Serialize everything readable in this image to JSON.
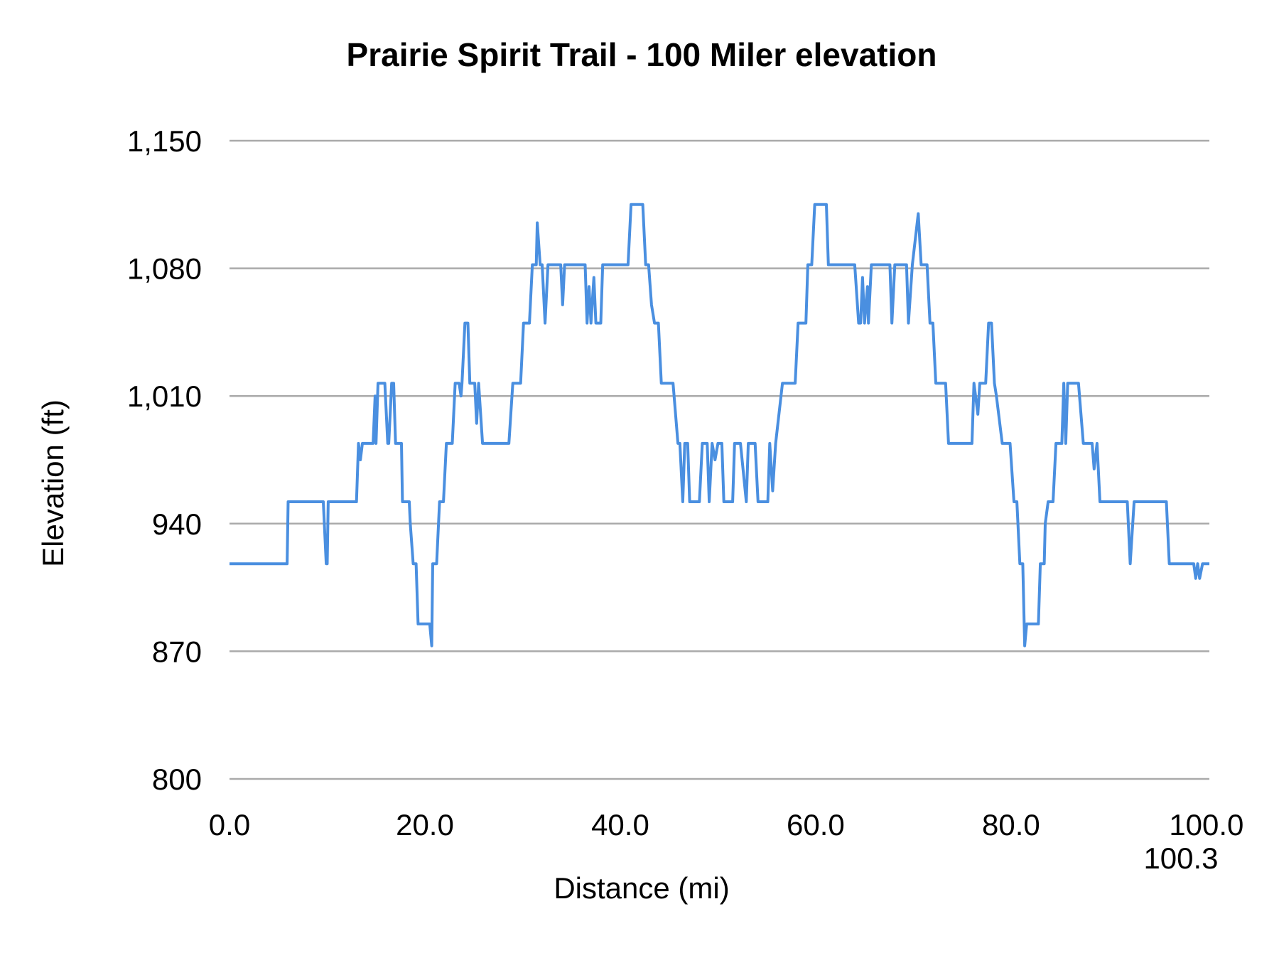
{
  "chart_data": {
    "type": "line",
    "title": "Prairie Spirit Trail - 100 Miler elevation",
    "xlabel": "Distance (mi)",
    "ylabel": "Elevation (ft)",
    "xlim": [
      0,
      100.3
    ],
    "ylim": [
      800,
      1150
    ],
    "x_ticks": [
      0,
      20,
      40,
      60,
      80,
      100,
      100.3
    ],
    "x_tick_labels": [
      "0.0",
      "20.0",
      "40.0",
      "60.0",
      "80.0",
      "100.0",
      "100.3"
    ],
    "y_ticks": [
      800,
      870,
      940,
      1010,
      1080,
      1150
    ],
    "y_tick_labels": [
      "800",
      "870",
      "940",
      "1,010",
      "1,080",
      "1,150"
    ],
    "grid": "horizontal",
    "legend": "none",
    "line_color": "#4a8fe0",
    "grid_color": "#aaaaaa",
    "series": [
      {
        "points": [
          [
            0,
            918
          ],
          [
            5.9,
            918
          ],
          [
            6.0,
            952
          ],
          [
            9.6,
            952
          ],
          [
            9.9,
            918
          ],
          [
            10.0,
            918
          ],
          [
            10.1,
            952
          ],
          [
            13.0,
            952
          ],
          [
            13.2,
            984
          ],
          [
            13.4,
            975
          ],
          [
            13.6,
            984
          ],
          [
            14.7,
            984
          ],
          [
            14.9,
            1010
          ],
          [
            15.0,
            984
          ],
          [
            15.2,
            1017
          ],
          [
            15.9,
            1017
          ],
          [
            16.2,
            984
          ],
          [
            16.3,
            984
          ],
          [
            16.6,
            1017
          ],
          [
            16.8,
            1017
          ],
          [
            17.0,
            984
          ],
          [
            17.6,
            984
          ],
          [
            17.7,
            952
          ],
          [
            18.4,
            952
          ],
          [
            18.5,
            940
          ],
          [
            18.8,
            918
          ],
          [
            19.1,
            918
          ],
          [
            19.3,
            885
          ],
          [
            20.5,
            885
          ],
          [
            20.7,
            873
          ],
          [
            20.8,
            918
          ],
          [
            21.2,
            918
          ],
          [
            21.5,
            952
          ],
          [
            21.9,
            952
          ],
          [
            22.2,
            984
          ],
          [
            22.8,
            984
          ],
          [
            23.1,
            1017
          ],
          [
            23.5,
            1017
          ],
          [
            23.7,
            1010
          ],
          [
            23.8,
            1017
          ],
          [
            24.1,
            1050
          ],
          [
            24.4,
            1050
          ],
          [
            24.6,
            1017
          ],
          [
            25.1,
            1017
          ],
          [
            25.3,
            995
          ],
          [
            25.5,
            1017
          ],
          [
            25.9,
            984
          ],
          [
            28.6,
            984
          ],
          [
            29.0,
            1017
          ],
          [
            29.8,
            1017
          ],
          [
            30.1,
            1050
          ],
          [
            30.7,
            1050
          ],
          [
            31.0,
            1082
          ],
          [
            31.4,
            1082
          ],
          [
            31.5,
            1105
          ],
          [
            31.8,
            1082
          ],
          [
            32.0,
            1082
          ],
          [
            32.3,
            1050
          ],
          [
            32.6,
            1082
          ],
          [
            33.9,
            1082
          ],
          [
            34.1,
            1060
          ],
          [
            34.3,
            1082
          ],
          [
            36.4,
            1082
          ],
          [
            36.6,
            1050
          ],
          [
            36.8,
            1070
          ],
          [
            37.0,
            1050
          ],
          [
            37.3,
            1075
          ],
          [
            37.5,
            1050
          ],
          [
            38.0,
            1050
          ],
          [
            38.2,
            1082
          ],
          [
            40.8,
            1082
          ],
          [
            41.1,
            1115
          ],
          [
            42.3,
            1115
          ],
          [
            42.6,
            1082
          ],
          [
            42.9,
            1082
          ],
          [
            43.2,
            1060
          ],
          [
            43.5,
            1050
          ],
          [
            43.9,
            1050
          ],
          [
            44.2,
            1017
          ],
          [
            45.4,
            1017
          ],
          [
            45.9,
            984
          ],
          [
            46.1,
            984
          ],
          [
            46.4,
            952
          ],
          [
            46.6,
            984
          ],
          [
            46.9,
            984
          ],
          [
            47.1,
            952
          ],
          [
            48.1,
            952
          ],
          [
            48.4,
            984
          ],
          [
            48.9,
            984
          ],
          [
            49.1,
            952
          ],
          [
            49.4,
            984
          ],
          [
            49.7,
            975
          ],
          [
            50.0,
            984
          ],
          [
            50.4,
            984
          ],
          [
            50.6,
            952
          ],
          [
            51.5,
            952
          ],
          [
            51.7,
            984
          ],
          [
            52.3,
            984
          ],
          [
            52.9,
            952
          ],
          [
            53.1,
            984
          ],
          [
            53.8,
            984
          ],
          [
            54.1,
            952
          ],
          [
            55.1,
            952
          ],
          [
            55.3,
            984
          ],
          [
            55.6,
            958
          ],
          [
            55.9,
            984
          ],
          [
            56.6,
            1017
          ],
          [
            57.9,
            1017
          ],
          [
            58.2,
            1050
          ],
          [
            59.0,
            1050
          ],
          [
            59.2,
            1082
          ],
          [
            59.6,
            1082
          ],
          [
            59.9,
            1115
          ],
          [
            61.1,
            1115
          ],
          [
            61.3,
            1082
          ],
          [
            64.0,
            1082
          ],
          [
            64.4,
            1050
          ],
          [
            64.6,
            1050
          ],
          [
            64.8,
            1075
          ],
          [
            65.0,
            1050
          ],
          [
            65.3,
            1070
          ],
          [
            65.4,
            1050
          ],
          [
            65.7,
            1082
          ],
          [
            67.6,
            1082
          ],
          [
            67.8,
            1050
          ],
          [
            68.1,
            1082
          ],
          [
            69.3,
            1082
          ],
          [
            69.5,
            1050
          ],
          [
            69.9,
            1082
          ],
          [
            70.5,
            1110
          ],
          [
            70.8,
            1082
          ],
          [
            71.4,
            1082
          ],
          [
            71.7,
            1050
          ],
          [
            72.0,
            1050
          ],
          [
            72.3,
            1017
          ],
          [
            73.3,
            1017
          ],
          [
            73.6,
            984
          ],
          [
            76.0,
            984
          ],
          [
            76.2,
            1017
          ],
          [
            76.6,
            1000
          ],
          [
            76.8,
            1017
          ],
          [
            77.4,
            1017
          ],
          [
            77.7,
            1050
          ],
          [
            78.0,
            1050
          ],
          [
            78.3,
            1017
          ],
          [
            78.5,
            1010
          ],
          [
            79.1,
            984
          ],
          [
            79.9,
            984
          ],
          [
            80.3,
            952
          ],
          [
            80.6,
            952
          ],
          [
            80.9,
            918
          ],
          [
            81.2,
            918
          ],
          [
            81.4,
            873
          ],
          [
            81.6,
            885
          ],
          [
            82.8,
            885
          ],
          [
            83.0,
            918
          ],
          [
            83.4,
            918
          ],
          [
            83.5,
            940
          ],
          [
            83.8,
            952
          ],
          [
            84.3,
            952
          ],
          [
            84.6,
            984
          ],
          [
            85.2,
            984
          ],
          [
            85.4,
            1017
          ],
          [
            85.6,
            984
          ],
          [
            85.8,
            1017
          ],
          [
            86.9,
            1017
          ],
          [
            87.4,
            984
          ],
          [
            88.3,
            984
          ],
          [
            88.5,
            970
          ],
          [
            88.8,
            984
          ],
          [
            89.1,
            952
          ],
          [
            91.9,
            952
          ],
          [
            92.2,
            918
          ],
          [
            92.6,
            952
          ],
          [
            95.9,
            952
          ],
          [
            96.2,
            918
          ],
          [
            98.7,
            918
          ],
          [
            98.9,
            910
          ],
          [
            99.1,
            918
          ],
          [
            99.3,
            910
          ],
          [
            99.6,
            918
          ],
          [
            100.3,
            918
          ]
        ]
      }
    ]
  }
}
